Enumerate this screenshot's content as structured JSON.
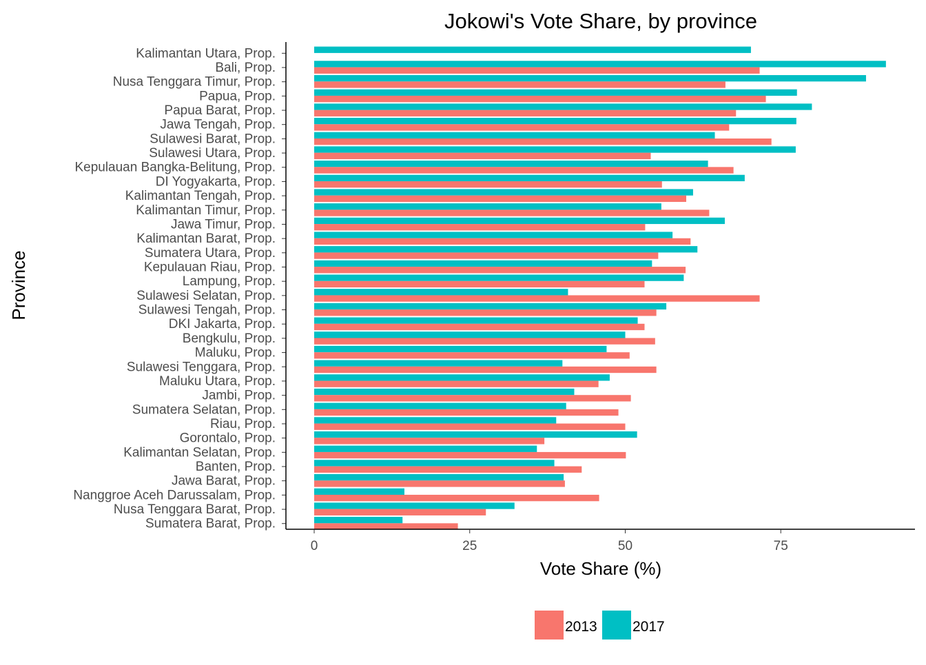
{
  "colors": {
    "2013": "#F8766D",
    "2017": "#00BFC4",
    "axis": "#000000",
    "text": "#4d4d4d"
  },
  "chart_data": {
    "type": "bar",
    "orientation": "horizontal",
    "title": "Jokowi's Vote Share, by province",
    "xlabel": "Vote Share (%)",
    "ylabel": "Province",
    "xlim": [
      0,
      96
    ],
    "xticks": [
      0,
      25,
      50,
      75
    ],
    "grid": false,
    "legend": "bottom",
    "categories": [
      "Kalimantan Utara, Prop.",
      "Bali, Prop.",
      "Nusa Tenggara Timur, Prop.",
      "Papua, Prop.",
      "Papua Barat, Prop.",
      "Jawa Tengah, Prop.",
      "Sulawesi Barat, Prop.",
      "Sulawesi Utara, Prop.",
      "Kepulauan Bangka-Belitung, Prop.",
      "DI Yogyakarta, Prop.",
      "Kalimantan Tengah, Prop.",
      "Kalimantan Timur, Prop.",
      "Jawa Timur, Prop.",
      "Kalimantan Barat, Prop.",
      "Sumatera Utara, Prop.",
      "Kepulauan Riau, Prop.",
      "Lampung, Prop.",
      "Sulawesi Selatan, Prop.",
      "Sulawesi Tengah, Prop.",
      "DKI Jakarta, Prop.",
      "Bengkulu, Prop.",
      "Maluku, Prop.",
      "Sulawesi Tenggara, Prop.",
      "Maluku Utara, Prop.",
      "Jambi, Prop.",
      "Sumatera Selatan, Prop.",
      "Riau, Prop.",
      "Gorontalo, Prop.",
      "Kalimantan Selatan, Prop.",
      "Banten, Prop.",
      "Jawa Barat, Prop.",
      "Nanggroe Aceh Darussalam, Prop.",
      "Nusa Tenggara Barat, Prop.",
      "Sumatera Barat, Prop."
    ],
    "series": [
      {
        "name": "2013",
        "color": "#F8766D",
        "values": [
          null,
          71.6,
          66.1,
          72.6,
          67.8,
          66.7,
          73.5,
          54.1,
          67.4,
          55.9,
          59.8,
          63.5,
          53.2,
          60.5,
          55.3,
          59.7,
          53.1,
          71.6,
          55.0,
          53.1,
          54.8,
          50.7,
          55.0,
          45.7,
          50.9,
          48.9,
          50.0,
          37.0,
          50.1,
          43.0,
          40.3,
          45.8,
          27.6,
          23.1
        ]
      },
      {
        "name": "2017",
        "color": "#00BFC4",
        "values": [
          70.2,
          91.9,
          88.7,
          77.6,
          80.0,
          77.5,
          64.4,
          77.4,
          63.3,
          69.2,
          60.9,
          55.8,
          66.0,
          57.6,
          61.6,
          54.3,
          59.4,
          40.8,
          56.6,
          52.0,
          50.0,
          47.0,
          39.9,
          47.5,
          41.8,
          40.5,
          38.9,
          51.9,
          35.8,
          38.6,
          40.1,
          14.5,
          32.2,
          14.2
        ]
      }
    ]
  }
}
